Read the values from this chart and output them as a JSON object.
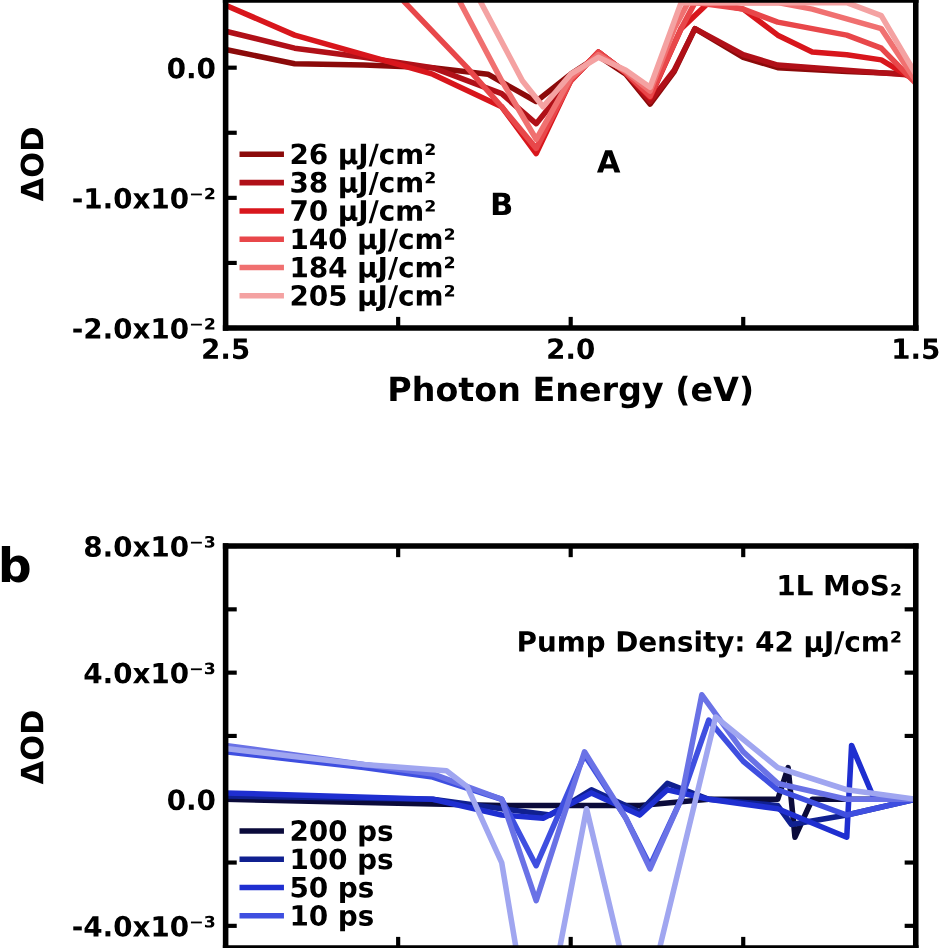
{
  "chart_data": [
    {
      "type": "line",
      "xlabel": "Photon Energy (eV)",
      "ylabel": "ΔOD",
      "xlim": [
        2.5,
        1.5
      ],
      "xticks": [
        2.5,
        {
          "value": 2.25,
          "label": null
        },
        {
          "value": 2.0,
          "label": "2.0"
        },
        {
          "value": 1.75,
          "label": null
        },
        1.5
      ],
      "ylim": [
        -0.02,
        0.0052
      ],
      "yticks": [
        {
          "value": -0.02,
          "label": "-2.0x10⁻²"
        },
        {
          "value": -0.015,
          "label": null
        },
        {
          "value": -0.01,
          "label": "-1.0x10⁻²"
        },
        {
          "value": -0.005,
          "label": null
        },
        {
          "value": 0.0,
          "label": "0.0"
        }
      ],
      "legend": "bottom left",
      "grid": false,
      "annotations": [
        "A",
        "B"
      ],
      "series": [
        {
          "name": "26 μJ/cm²",
          "color": "#8b0a0a",
          "x": [
            2.5,
            2.4,
            2.3,
            2.2,
            2.12,
            2.05,
            2.0,
            1.96,
            1.92,
            1.885,
            1.85,
            1.82,
            1.75,
            1.7,
            1.6,
            1.5
          ],
          "values": [
            0.0014,
            0.0003,
            0.0002,
            0.0,
            -0.0005,
            -0.0026,
            -0.0005,
            0.0009,
            -0.0005,
            -0.0028,
            -0.0003,
            0.003,
            0.0008,
            0.0,
            -0.0003,
            -0.0005
          ]
        },
        {
          "name": "38 μJ/cm²",
          "color": "#b01018",
          "x": [
            2.5,
            2.4,
            2.3,
            2.2,
            2.1,
            2.05,
            2.0,
            1.96,
            1.92,
            1.885,
            1.85,
            1.82,
            1.75,
            1.7,
            1.6,
            1.5
          ],
          "values": [
            0.0028,
            0.0015,
            0.0008,
            0.0,
            -0.002,
            -0.0043,
            -0.001,
            0.0012,
            -0.0004,
            -0.0026,
            -0.0002,
            0.003,
            0.001,
            0.0002,
            -0.0002,
            -0.0006
          ]
        },
        {
          "name": "70 μJ/cm²",
          "color": "#d8161c",
          "x": [
            2.5,
            2.4,
            2.3,
            2.2,
            2.1,
            2.05,
            2.0,
            1.96,
            1.92,
            1.885,
            1.84,
            1.8,
            1.75,
            1.7,
            1.65,
            1.6,
            1.55,
            1.5
          ],
          "values": [
            0.0048,
            0.0025,
            0.001,
            -0.0005,
            -0.003,
            -0.0066,
            -0.001,
            0.0012,
            -0.0004,
            -0.0023,
            0.003,
            0.005,
            0.0045,
            0.0025,
            0.0012,
            0.001,
            0.0006,
            -0.001
          ]
        },
        {
          "name": "140 μJ/cm²",
          "color": "#e8474a",
          "x": [
            2.24,
            2.15,
            2.1,
            2.05,
            2.0,
            1.96,
            1.92,
            1.885,
            1.84,
            1.82,
            1.75,
            1.7,
            1.65,
            1.6,
            1.55,
            1.5
          ],
          "values": [
            0.005,
            0.0,
            -0.003,
            -0.0062,
            -0.001,
            0.0012,
            -0.0004,
            -0.0022,
            0.003,
            0.005,
            0.0045,
            0.0035,
            0.003,
            0.0025,
            0.0015,
            -0.0012
          ]
        },
        {
          "name": "184 μJ/cm²",
          "color": "#f07070",
          "x": [
            2.16,
            2.1,
            2.05,
            2.0,
            1.96,
            1.92,
            1.885,
            1.85,
            1.83,
            1.7,
            1.65,
            1.55,
            1.5
          ],
          "values": [
            0.005,
            -0.001,
            -0.0055,
            -0.0008,
            0.001,
            -0.0003,
            -0.0018,
            0.003,
            0.005,
            0.005,
            0.0045,
            0.003,
            -0.001
          ]
        },
        {
          "name": "205 μJ/cm²",
          "color": "#f4a2a2",
          "x": [
            2.13,
            2.07,
            2.04,
            2.0,
            1.96,
            1.92,
            1.885,
            1.84,
            1.6,
            1.55,
            1.5
          ],
          "values": [
            0.005,
            -0.001,
            -0.003,
            -0.0005,
            0.0008,
            -0.0002,
            -0.0015,
            0.005,
            0.005,
            0.004,
            -0.0005
          ]
        }
      ]
    },
    {
      "type": "line",
      "ylabel": "ΔOD",
      "tick_labels": "y",
      "xlim": [
        2.5,
        1.5
      ],
      "xticks": [
        {
          "value": 2.5,
          "label": null
        },
        {
          "value": 2.25,
          "label": null
        },
        {
          "value": 2.0,
          "label": null
        },
        {
          "value": 1.75,
          "label": null
        },
        {
          "value": 1.5,
          "label": null
        }
      ],
      "ylim": [
        -0.0047,
        0.008
      ],
      "yticks": [
        {
          "value": -0.004,
          "label": "-4.0x10⁻³"
        },
        {
          "value": -0.002,
          "label": null
        },
        {
          "value": 0.0,
          "label": "0.0"
        },
        {
          "value": 0.002,
          "label": null
        },
        {
          "value": 0.004,
          "label": "4.0x10⁻³"
        },
        {
          "value": 0.006,
          "label": null
        },
        {
          "value": 0.008,
          "label": "8.0x10⁻³"
        }
      ],
      "legend": "bottom left",
      "grid": false,
      "annotations": [
        "b",
        "1L MoS₂",
        "Pump Density: 42 μJ/cm²"
      ],
      "series": [
        {
          "name": "200 ps",
          "color": "#0b0b3b",
          "x": [
            2.5,
            2.3,
            2.1,
            2.0,
            1.9,
            1.8,
            1.7,
            1.685,
            1.675,
            1.65,
            1.55,
            1.5
          ],
          "values": [
            0.0,
            -0.0001,
            -0.0002,
            -0.0002,
            -0.0002,
            0.0,
            0.0,
            0.001,
            -0.0012,
            0.0,
            0.0,
            0.0
          ]
        },
        {
          "name": "100 ps",
          "color": "#102090",
          "x": [
            2.5,
            2.2,
            2.1,
            2.03,
            1.97,
            1.9,
            1.86,
            1.8,
            1.7,
            1.68,
            1.6,
            1.5
          ],
          "values": [
            0.0001,
            0.0,
            -0.0003,
            -0.0005,
            0.0003,
            -0.0004,
            0.0005,
            0.0,
            -0.0002,
            -0.0008,
            -0.0005,
            0.0
          ]
        },
        {
          "name": "50 ps",
          "color": "#1f2fd0",
          "x": [
            2.5,
            2.2,
            2.1,
            2.04,
            1.97,
            1.9,
            1.86,
            1.8,
            1.7,
            1.6,
            1.593,
            1.56,
            1.5
          ],
          "values": [
            0.0002,
            0.0,
            -0.0005,
            -0.0006,
            0.0002,
            -0.0005,
            0.0003,
            0.0,
            -0.0003,
            -0.0012,
            0.0017,
            0.0,
            0.0
          ]
        },
        {
          "name": "10 ps",
          "color": "#3f4fe0",
          "x": [
            2.5,
            2.3,
            2.2,
            2.1,
            2.05,
            1.98,
            1.92,
            1.885,
            1.84,
            1.8,
            1.75,
            1.7,
            1.6,
            1.5
          ],
          "values": [
            0.0015,
            0.001,
            0.0007,
            0.0,
            -0.0021,
            0.0014,
            -0.0006,
            -0.0021,
            0.0,
            0.0025,
            0.0012,
            0.0003,
            -0.0005,
            0.0
          ]
        },
        {
          "color": "#6a72e6",
          "x": [
            2.5,
            2.3,
            2.2,
            2.1,
            2.05,
            1.98,
            1.92,
            1.885,
            1.84,
            1.81,
            1.75,
            1.7,
            1.6,
            1.5
          ],
          "values": [
            0.0017,
            0.0011,
            0.0008,
            0.0,
            -0.0032,
            0.0015,
            -0.0006,
            -0.0022,
            0.0,
            0.0033,
            0.0015,
            0.0005,
            0.0,
            0.0
          ]
        },
        {
          "color": "#a0a6f0",
          "x": [
            2.5,
            2.3,
            2.18,
            2.15,
            2.1,
            2.08,
            2.05,
            2.015,
            1.977,
            1.93,
            1.9,
            1.87,
            1.79,
            1.7,
            1.6,
            1.5
          ],
          "values": [
            0.0016,
            0.0011,
            0.0009,
            0.0004,
            -0.002,
            -0.0046,
            null,
            -0.0046,
            -0.0003,
            -0.0046,
            null,
            -0.0046,
            0.0026,
            0.001,
            0.0003,
            0.0
          ]
        }
      ]
    }
  ]
}
